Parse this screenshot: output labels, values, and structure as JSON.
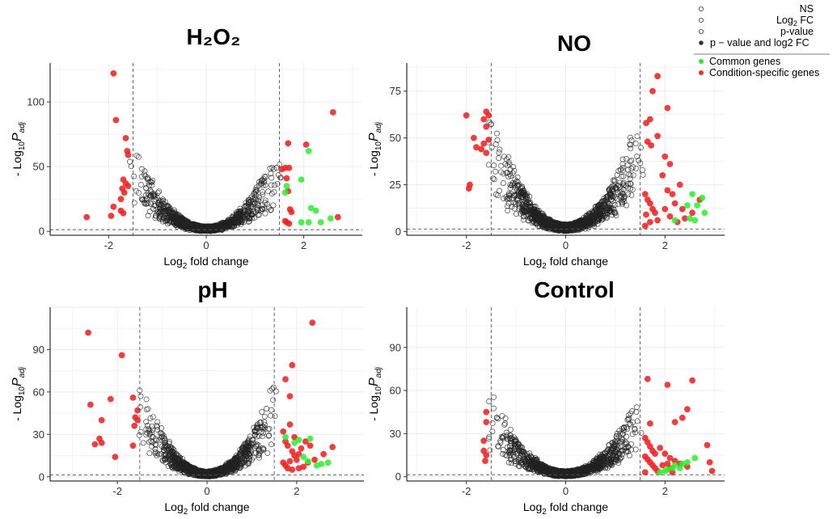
{
  "legend": {
    "sig_title": "",
    "sig_items": [
      {
        "label": "NS",
        "style": "open"
      },
      {
        "label": "Log2 FC",
        "style": "open"
      },
      {
        "label": "p-value",
        "style": "open"
      },
      {
        "label": "p − value and log2 FC",
        "style": "filled"
      }
    ],
    "group_items": [
      {
        "label": "Common genes",
        "color": "#2ee82e"
      },
      {
        "label": "Condition-specific genes",
        "color": "#f03030"
      }
    ]
  },
  "colors": {
    "common": "#33ee33",
    "specific": "#ee2222",
    "ns": "#222222",
    "grid": "#ebebeb"
  },
  "chart_data": [
    {
      "type": "scatter",
      "title": "H₂O₂",
      "xlabel": "Log2 fold change",
      "ylabel": "- Log10 Padj",
      "xlim": [
        -3.2,
        3.2
      ],
      "ylim": [
        -3,
        130
      ],
      "xticks": [
        -2,
        0,
        2
      ],
      "yticks": [
        0,
        50,
        100
      ],
      "fc_cutoff": 1.5,
      "p_cutoff": 1.3,
      "ns_max": 62,
      "ns_steep": 3.0,
      "ns_count": 1200,
      "series": [
        {
          "name": "Condition-specific genes",
          "points": [
            [
              -1.9,
              122
            ],
            [
              -1.85,
              86
            ],
            [
              -1.65,
              72
            ],
            [
              -1.62,
              62
            ],
            [
              -1.6,
              59
            ],
            [
              -1.7,
              40
            ],
            [
              -1.65,
              37
            ],
            [
              -1.72,
              33
            ],
            [
              -1.6,
              35
            ],
            [
              -1.68,
              30
            ],
            [
              -1.75,
              25
            ],
            [
              -1.9,
              19
            ],
            [
              -1.95,
              12
            ],
            [
              -1.75,
              16
            ],
            [
              -1.7,
              14
            ],
            [
              -2.45,
              11
            ],
            [
              1.55,
              48
            ],
            [
              1.62,
              49
            ],
            [
              1.7,
              49
            ],
            [
              1.65,
              41
            ],
            [
              1.68,
              68
            ],
            [
              2.05,
              67
            ],
            [
              2.6,
              92
            ],
            [
              1.68,
              31
            ],
            [
              1.72,
              17
            ],
            [
              1.75,
              15
            ],
            [
              1.62,
              8
            ],
            [
              1.65,
              7
            ],
            [
              1.7,
              6
            ],
            [
              2.7,
              11
            ]
          ]
        },
        {
          "name": "Common genes",
          "points": [
            [
              2.1,
              62
            ],
            [
              1.95,
              40
            ],
            [
              1.62,
              30
            ],
            [
              1.65,
              35
            ],
            [
              2.15,
              18
            ],
            [
              2.25,
              16
            ],
            [
              2.35,
              7
            ],
            [
              2.1,
              7
            ],
            [
              1.95,
              7
            ],
            [
              2.55,
              10
            ]
          ]
        }
      ]
    },
    {
      "type": "scatter",
      "title": "NO",
      "xlabel": "Log2 fold change",
      "ylabel": "- Log10 Padj",
      "xlim": [
        -3.2,
        3.2
      ],
      "ylim": [
        -2,
        90
      ],
      "xticks": [
        -2,
        0,
        2
      ],
      "yticks": [
        0,
        25,
        50,
        75
      ],
      "fc_cutoff": 1.5,
      "p_cutoff": 1.3,
      "ns_max": 60,
      "ns_steep": 2.8,
      "ns_count": 1300,
      "series": [
        {
          "name": "Condition-specific genes",
          "points": [
            [
              -2.0,
              62
            ],
            [
              -1.6,
              64
            ],
            [
              -1.55,
              62
            ],
            [
              -1.65,
              60
            ],
            [
              -1.6,
              56
            ],
            [
              -1.55,
              49
            ],
            [
              -1.65,
              47
            ],
            [
              -1.85,
              50
            ],
            [
              -1.8,
              45
            ],
            [
              -1.7,
              44
            ],
            [
              -1.6,
              42
            ],
            [
              -1.95,
              23
            ],
            [
              -1.93,
              25
            ],
            [
              1.85,
              83
            ],
            [
              1.75,
              75
            ],
            [
              1.7,
              60
            ],
            [
              1.62,
              58
            ],
            [
              2.05,
              66
            ],
            [
              1.65,
              48
            ],
            [
              1.72,
              46
            ],
            [
              2.0,
              40
            ],
            [
              1.85,
              51
            ],
            [
              2.1,
              36
            ],
            [
              1.6,
              20
            ],
            [
              1.65,
              17
            ],
            [
              1.7,
              15
            ],
            [
              1.75,
              12
            ],
            [
              1.8,
              10
            ],
            [
              1.62,
              9
            ],
            [
              1.7,
              5
            ],
            [
              1.6,
              3
            ],
            [
              1.85,
              6
            ],
            [
              2.0,
              12
            ],
            [
              2.2,
              15
            ],
            [
              2.35,
              12
            ],
            [
              2.55,
              10
            ],
            [
              2.7,
              17
            ],
            [
              2.1,
              8
            ],
            [
              2.25,
              5
            ],
            [
              2.4,
              7
            ],
            [
              2.15,
              20
            ],
            [
              2.3,
              25
            ],
            [
              1.95,
              30
            ],
            [
              2.05,
              22
            ]
          ]
        },
        {
          "name": "Common genes",
          "points": [
            [
              2.55,
              20
            ],
            [
              2.75,
              18
            ],
            [
              2.65,
              14
            ],
            [
              2.8,
              10
            ],
            [
              2.5,
              7
            ],
            [
              2.6,
              6
            ],
            [
              2.2,
              6
            ],
            [
              2.45,
              14
            ]
          ]
        }
      ]
    },
    {
      "type": "scatter",
      "title": "pH",
      "xlabel": "Log2 fold change",
      "ylabel": "- Log10 Padj",
      "xlim": [
        -3.5,
        3.5
      ],
      "ylim": [
        -3,
        120
      ],
      "xticks": [
        -2,
        0,
        2
      ],
      "yticks": [
        0,
        30,
        60,
        90
      ],
      "fc_cutoff": 1.5,
      "p_cutoff": 1.3,
      "ns_max": 75,
      "ns_steep": 3.0,
      "ns_count": 1200,
      "series": [
        {
          "name": "Condition-specific genes",
          "points": [
            [
              -2.65,
              102
            ],
            [
              -2.6,
              51
            ],
            [
              -2.35,
              40
            ],
            [
              -2.4,
              27
            ],
            [
              -2.5,
              23
            ],
            [
              -2.35,
              24
            ],
            [
              -2.15,
              55
            ],
            [
              -2.05,
              14
            ],
            [
              -1.9,
              86
            ],
            [
              -1.65,
              56
            ],
            [
              -1.55,
              47
            ],
            [
              -1.6,
              42
            ],
            [
              -1.55,
              40
            ],
            [
              -1.62,
              36
            ],
            [
              -1.65,
              22
            ],
            [
              2.35,
              109
            ],
            [
              1.9,
              79
            ],
            [
              1.75,
              69
            ],
            [
              1.85,
              57
            ],
            [
              1.85,
              37
            ],
            [
              1.7,
              32
            ],
            [
              1.75,
              25
            ],
            [
              1.8,
              22
            ],
            [
              1.9,
              18
            ],
            [
              1.95,
              15
            ],
            [
              2.0,
              12
            ],
            [
              1.7,
              10
            ],
            [
              1.75,
              8
            ],
            [
              1.8,
              6
            ],
            [
              1.9,
              5
            ],
            [
              2.05,
              6
            ],
            [
              2.15,
              7
            ],
            [
              2.25,
              10
            ],
            [
              2.4,
              12
            ],
            [
              2.6,
              16
            ],
            [
              2.8,
              21
            ],
            [
              2.1,
              20
            ],
            [
              2.2,
              25
            ],
            [
              2.3,
              22
            ],
            [
              1.95,
              28
            ],
            [
              1.85,
              11
            ],
            [
              2.05,
              16
            ]
          ]
        },
        {
          "name": "Common genes",
          "points": [
            [
              1.75,
              28
            ],
            [
              2.05,
              26
            ],
            [
              2.3,
              27
            ],
            [
              2.15,
              14
            ],
            [
              2.25,
              11
            ],
            [
              2.45,
              8
            ],
            [
              2.55,
              9
            ],
            [
              2.7,
              10
            ],
            [
              1.95,
              24
            ]
          ]
        }
      ]
    },
    {
      "type": "scatter",
      "title": "Control",
      "xlabel": "Log2 fold change",
      "ylabel": "- Log10 Padj",
      "xlim": [
        -3.2,
        3.2
      ],
      "ylim": [
        -3,
        118
      ],
      "xticks": [
        -2,
        0,
        2
      ],
      "yticks": [
        0,
        30,
        60,
        90
      ],
      "fc_cutoff": 1.5,
      "p_cutoff": 1.3,
      "ns_max": 62,
      "ns_steep": 2.5,
      "ns_count": 1300,
      "series": [
        {
          "name": "Condition-specific genes",
          "points": [
            [
              -1.6,
              45
            ],
            [
              -1.6,
              38
            ],
            [
              -1.65,
              25
            ],
            [
              -1.65,
              18
            ],
            [
              -1.6,
              15
            ],
            [
              -1.62,
              11
            ],
            [
              1.65,
              68
            ],
            [
              2.05,
              64
            ],
            [
              2.55,
              67
            ],
            [
              2.45,
              47
            ],
            [
              2.35,
              41
            ],
            [
              2.2,
              38
            ],
            [
              1.7,
              37
            ],
            [
              1.6,
              27
            ],
            [
              1.65,
              24
            ],
            [
              1.7,
              21
            ],
            [
              1.75,
              18
            ],
            [
              1.8,
              16
            ],
            [
              1.6,
              14
            ],
            [
              1.65,
              12
            ],
            [
              1.7,
              10
            ],
            [
              1.75,
              8
            ],
            [
              1.8,
              6
            ],
            [
              1.85,
              4
            ],
            [
              1.6,
              3
            ],
            [
              1.9,
              20
            ],
            [
              2.0,
              16
            ],
            [
              2.1,
              13
            ],
            [
              2.2,
              11
            ],
            [
              2.3,
              9
            ],
            [
              2.45,
              7
            ],
            [
              2.1,
              6
            ],
            [
              2.15,
              3
            ],
            [
              2.85,
              22
            ],
            [
              2.9,
              10
            ],
            [
              2.95,
              4
            ],
            [
              1.95,
              8
            ],
            [
              2.05,
              9
            ]
          ]
        },
        {
          "name": "Common genes",
          "points": [
            [
              2.6,
              13
            ],
            [
              2.45,
              10
            ],
            [
              2.35,
              9
            ],
            [
              2.2,
              8
            ],
            [
              2.15,
              6
            ],
            [
              2.05,
              5
            ],
            [
              2.0,
              4
            ],
            [
              1.9,
              3
            ],
            [
              2.3,
              6
            ]
          ]
        }
      ]
    }
  ]
}
